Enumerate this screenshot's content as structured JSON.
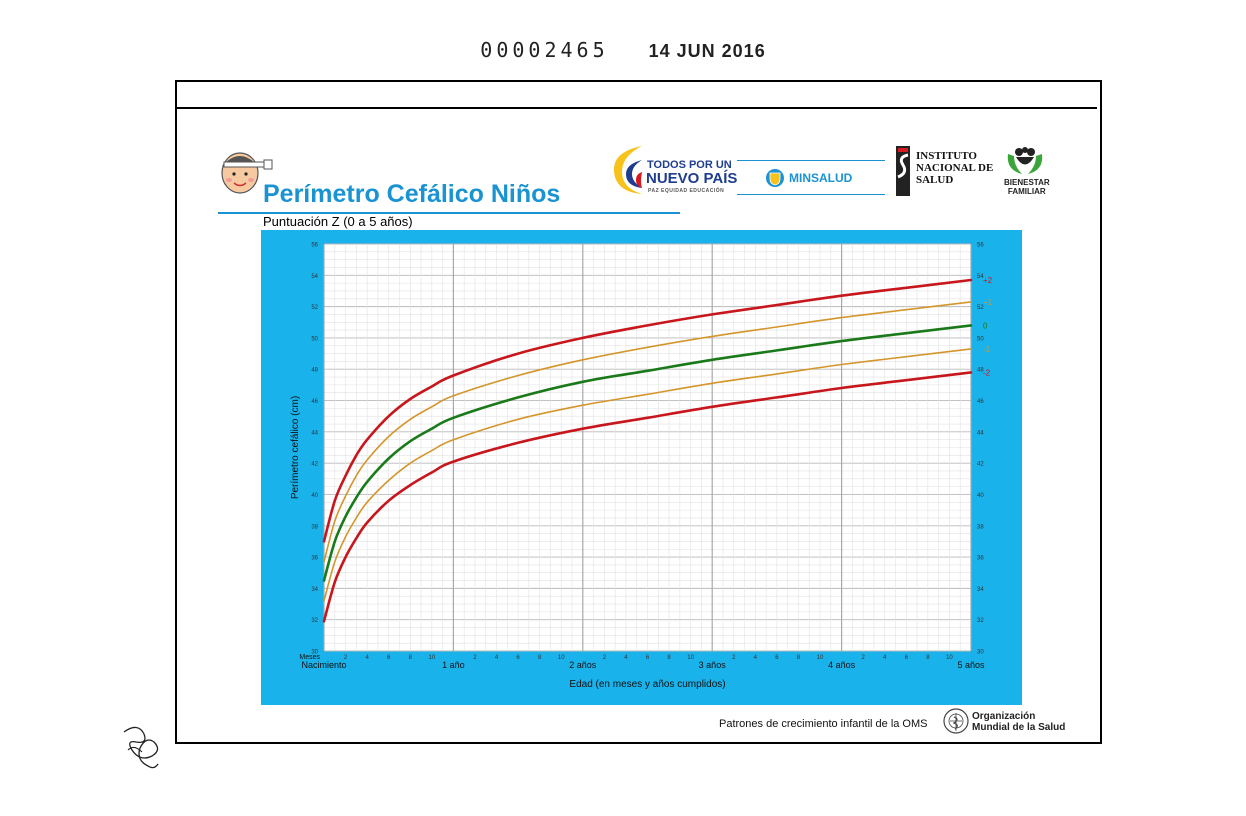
{
  "stamp": {
    "number": "00002465",
    "date": "14 JUN 2016"
  },
  "header": {
    "title": "Perímetro Cefálico Niños",
    "subtitle": "Puntuación Z (0 a 5 años)"
  },
  "logos": {
    "todos_line1": "TODOS POR UN",
    "todos_line2": "NUEVO PAÍS",
    "todos_line3": "PAZ  EQUIDAD  EDUCACIÓN",
    "minsalud": "MINSALUD",
    "ins_line1": "INSTITUTO",
    "ins_line2": "NACIONAL DE",
    "ins_line3": "SALUD",
    "bienestar_line1": "BIENESTAR",
    "bienestar_line2": "FAMILIAR"
  },
  "footer": {
    "note": "Patrones de crecimiento infantil de la OMS",
    "oms_line1": "Organización",
    "oms_line2": "Mundial de la Salud"
  },
  "colors": {
    "chart_bg": "#1ab2ea",
    "pm2": "#c8161d",
    "pm1": "#d4952b",
    "median": "#1a7a1a",
    "title": "#1a93d3"
  },
  "chart_data": {
    "type": "line",
    "title": "Perímetro Cefálico Niños",
    "subtitle": "Puntuación Z (0 a 5 años)",
    "xlabel": "Edad (en meses y años cumplidos)",
    "ylabel": "Perímetro cefálico (cm)",
    "xlim": [
      0,
      60
    ],
    "ylim": [
      30,
      56
    ],
    "y_ticks": [
      30,
      32,
      34,
      36,
      38,
      40,
      42,
      44,
      46,
      48,
      50,
      52,
      54,
      56
    ],
    "months_label": "Meses",
    "month_ticks": [
      "2",
      "4",
      "6",
      "8",
      "10"
    ],
    "year_labels": [
      {
        "month": 0,
        "label": "Nacimiento"
      },
      {
        "month": 12,
        "label": "1 año"
      },
      {
        "month": 24,
        "label": "2 años"
      },
      {
        "month": 36,
        "label": "3 años"
      },
      {
        "month": 48,
        "label": "4 años"
      },
      {
        "month": 60,
        "label": "5 años"
      }
    ],
    "x": [
      0,
      1,
      2,
      3,
      4,
      6,
      8,
      10,
      12,
      18,
      24,
      30,
      36,
      42,
      48,
      54,
      60
    ],
    "series": [
      {
        "name": "+2",
        "color": "#c8161d",
        "width": 2.6,
        "values": [
          37.0,
          39.6,
          41.2,
          42.5,
          43.5,
          45.0,
          46.1,
          46.9,
          47.6,
          49.0,
          50.0,
          50.8,
          51.5,
          52.1,
          52.7,
          53.2,
          53.7
        ]
      },
      {
        "name": "+1",
        "color": "#d4952b",
        "width": 1.6,
        "values": [
          35.7,
          38.3,
          39.9,
          41.2,
          42.2,
          43.7,
          44.8,
          45.6,
          46.3,
          47.6,
          48.6,
          49.4,
          50.1,
          50.7,
          51.3,
          51.8,
          52.3
        ]
      },
      {
        "name": "0",
        "color": "#1a7a1a",
        "width": 2.6,
        "values": [
          34.5,
          37.0,
          38.6,
          39.8,
          40.8,
          42.3,
          43.4,
          44.2,
          44.9,
          46.2,
          47.2,
          47.9,
          48.6,
          49.2,
          49.8,
          50.3,
          50.8
        ]
      },
      {
        "name": "-1",
        "color": "#d4952b",
        "width": 1.6,
        "values": [
          33.2,
          35.7,
          37.3,
          38.5,
          39.5,
          40.9,
          42.0,
          42.8,
          43.5,
          44.8,
          45.7,
          46.4,
          47.1,
          47.7,
          48.3,
          48.8,
          49.3
        ]
      },
      {
        "name": "-2",
        "color": "#c8161d",
        "width": 2.6,
        "values": [
          31.9,
          34.4,
          36.0,
          37.2,
          38.2,
          39.6,
          40.6,
          41.4,
          42.1,
          43.3,
          44.2,
          44.9,
          45.6,
          46.2,
          46.8,
          47.3,
          47.8
        ]
      }
    ]
  }
}
